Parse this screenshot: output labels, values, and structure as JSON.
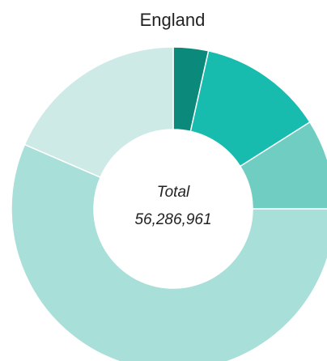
{
  "chart_data": {
    "type": "pie",
    "title": "England",
    "center_label": "Total",
    "center_value": "56,286,961",
    "total": 56286961,
    "slices": [
      {
        "value": 3.5,
        "color": "#0b8a7b"
      },
      {
        "value": 12.5,
        "color": "#17bcae"
      },
      {
        "value": 9.0,
        "color": "#6fcdc2"
      },
      {
        "value": 56.5,
        "color": "#a9dfd9"
      },
      {
        "value": 18.5,
        "color": "#cdeae6"
      }
    ]
  }
}
